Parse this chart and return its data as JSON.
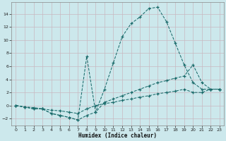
{
  "xlabel": "Humidex (Indice chaleur)",
  "bg_color": "#cce8ec",
  "line_color": "#1a6b6b",
  "grid_color": "#c8dde0",
  "xlim": [
    -0.5,
    23.5
  ],
  "ylim": [
    -3.0,
    15.8
  ],
  "xticks": [
    0,
    1,
    2,
    3,
    4,
    5,
    6,
    7,
    8,
    9,
    10,
    11,
    12,
    13,
    14,
    15,
    16,
    17,
    18,
    19,
    20,
    21,
    22,
    23
  ],
  "yticks": [
    -2,
    0,
    2,
    4,
    6,
    8,
    10,
    12,
    14
  ],
  "curve1": {
    "x": [
      0,
      1,
      2,
      3,
      4,
      5,
      6,
      7,
      8,
      9,
      10,
      11,
      12,
      13,
      14,
      15,
      16,
      17,
      18,
      19,
      20,
      21,
      22,
      23
    ],
    "y": [
      0,
      -0.2,
      -0.5,
      -0.5,
      -1.2,
      -1.5,
      -1.8,
      -2.2,
      -1.5,
      -1.0,
      2.5,
      6.5,
      10.5,
      12.5,
      13.5,
      14.8,
      15.0,
      12.8,
      9.5,
      6.2,
      3.5,
      2.5,
      2.5,
      2.5
    ]
  },
  "curve2": {
    "x": [
      0,
      1,
      2,
      3,
      4,
      5,
      6,
      7,
      8,
      9,
      10,
      11,
      12,
      13,
      14,
      15,
      16,
      17,
      18,
      19,
      20,
      21,
      22,
      23
    ],
    "y": [
      0,
      -0.2,
      -0.5,
      -0.5,
      -1.2,
      -1.5,
      -1.8,
      -2.2,
      7.5,
      -1.0,
      0.5,
      1.0,
      1.5,
      2.0,
      2.5,
      3.0,
      3.5,
      3.8,
      4.2,
      4.5,
      6.2,
      3.5,
      2.5,
      2.5
    ]
  },
  "curve3": {
    "x": [
      0,
      1,
      2,
      3,
      4,
      5,
      6,
      7,
      8,
      9,
      10,
      11,
      12,
      13,
      14,
      15,
      16,
      17,
      18,
      19,
      20,
      21,
      22,
      23
    ],
    "y": [
      0,
      -0.2,
      -0.3,
      -0.5,
      -0.7,
      -0.8,
      -1.0,
      -1.2,
      -0.5,
      0.0,
      0.3,
      0.5,
      0.8,
      1.0,
      1.3,
      1.5,
      1.8,
      2.0,
      2.2,
      2.5,
      2.0,
      2.0,
      2.5,
      2.5
    ]
  }
}
